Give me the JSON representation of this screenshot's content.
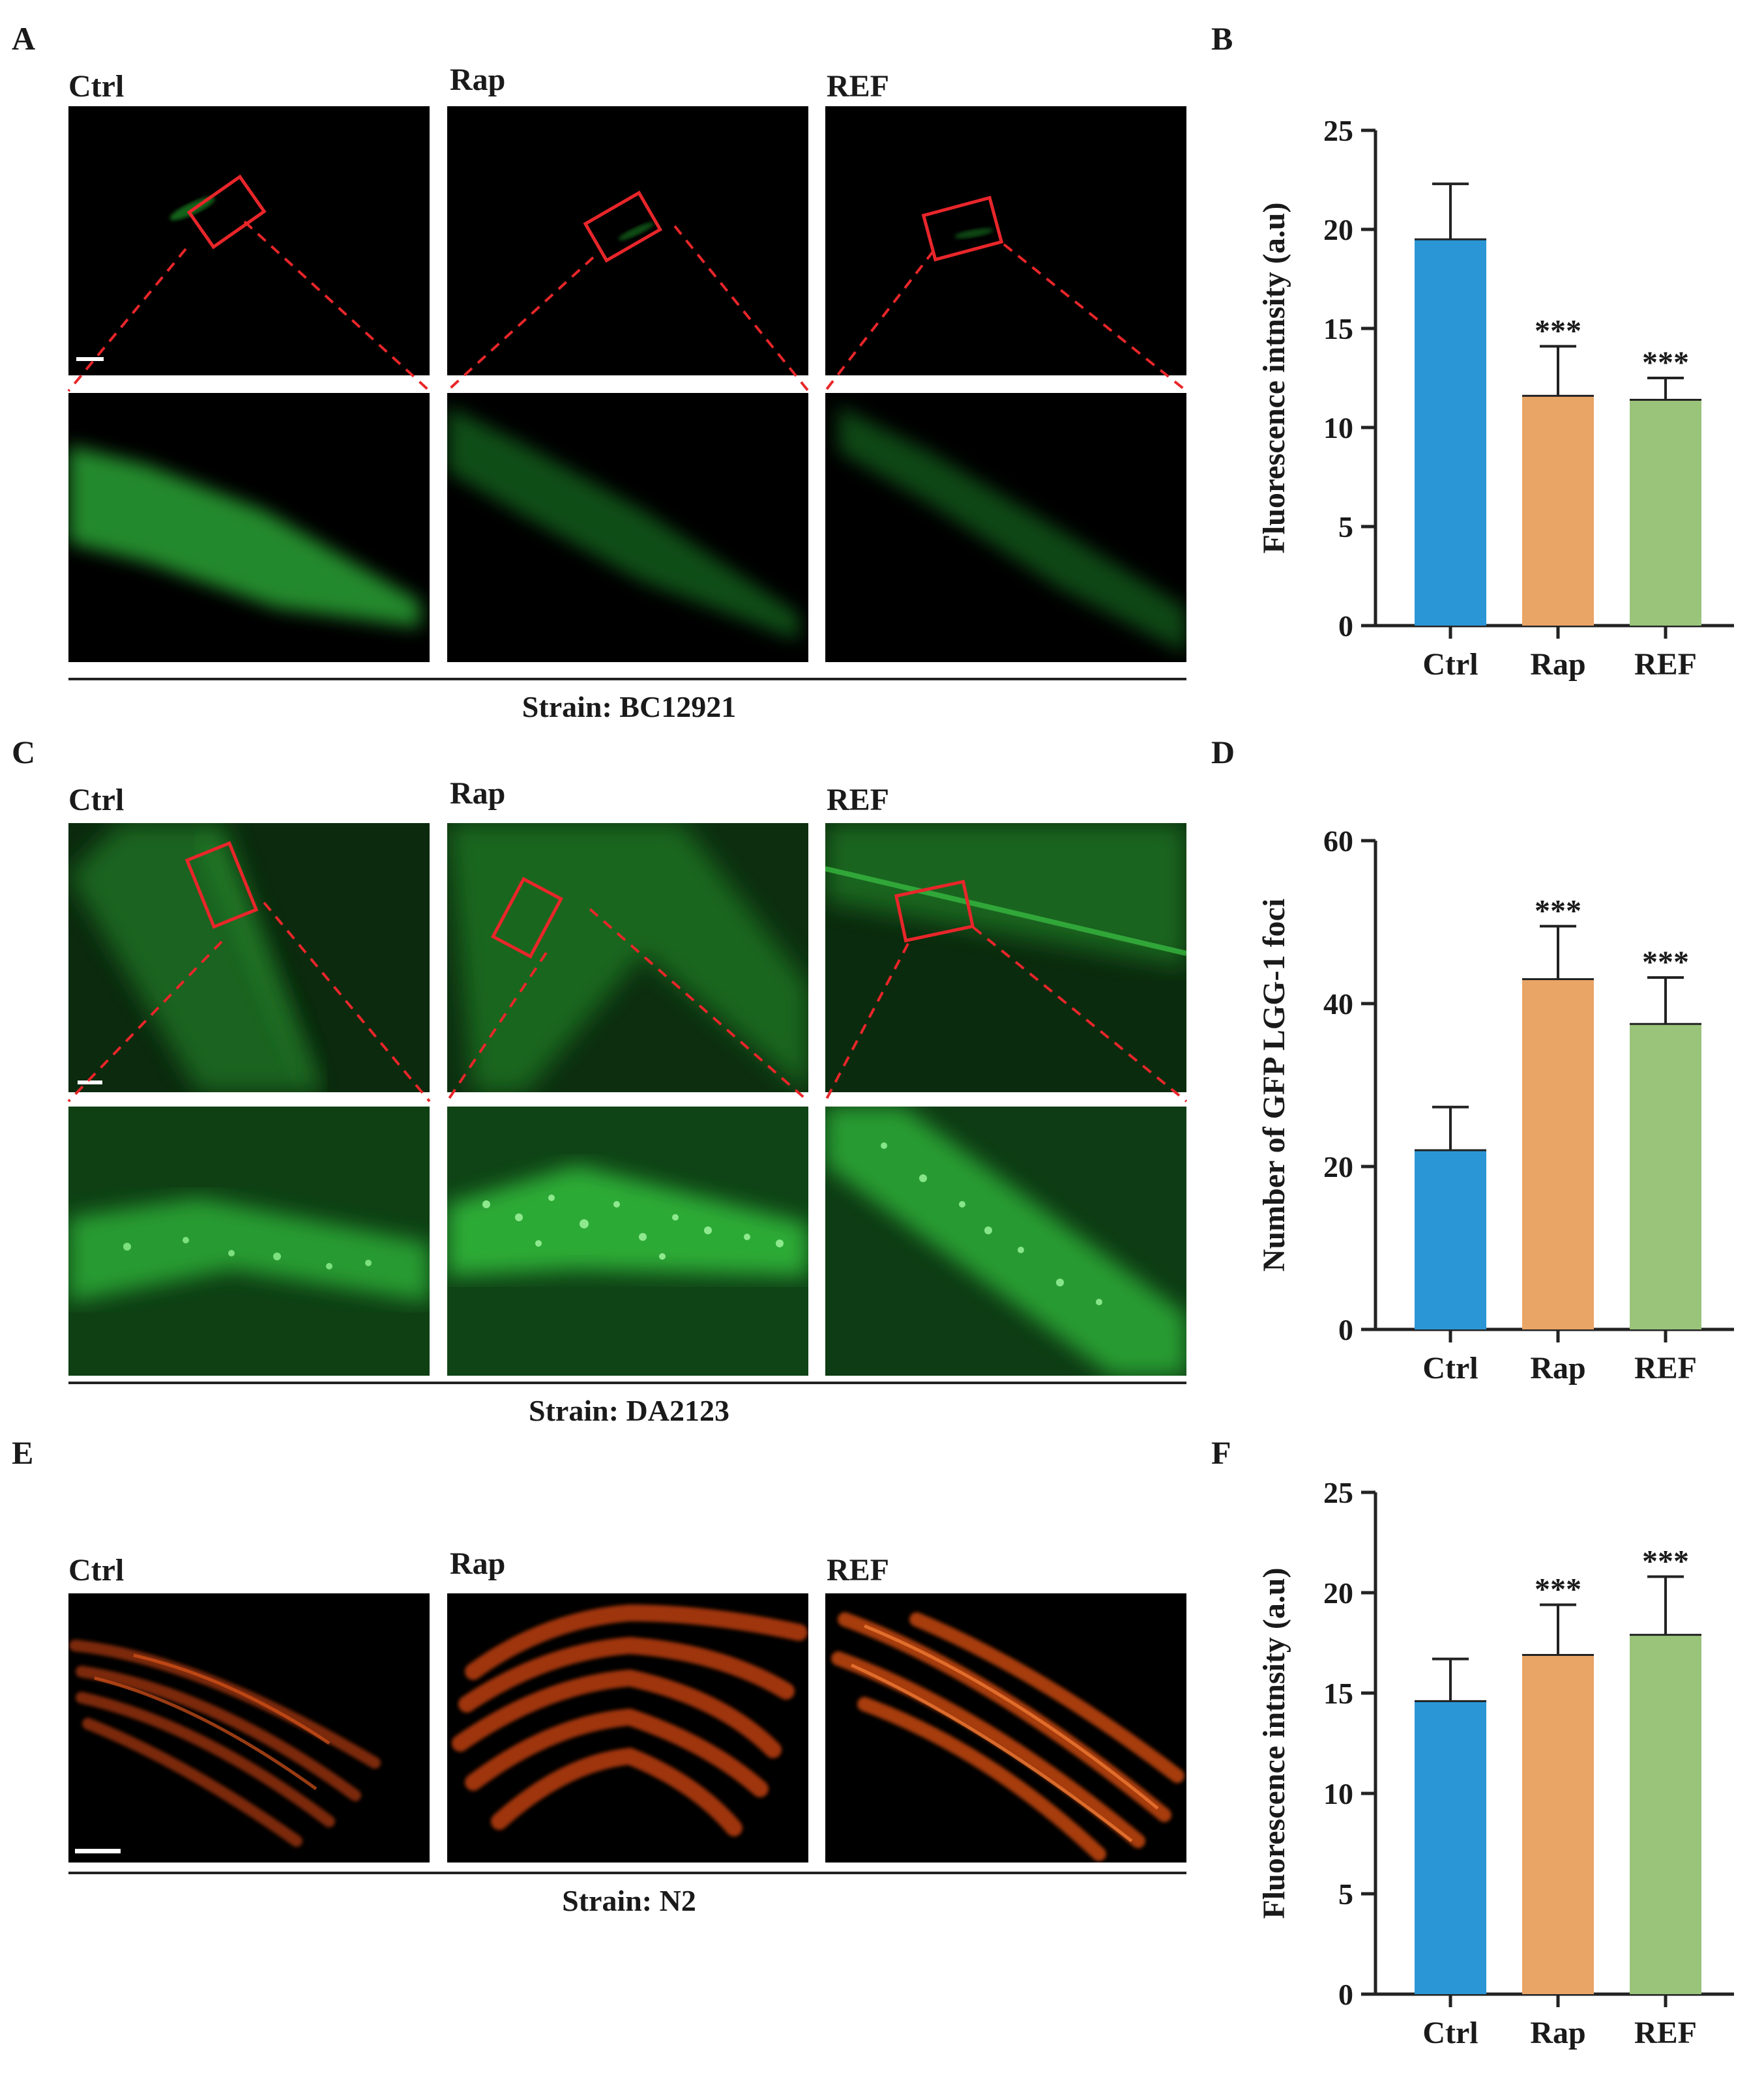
{
  "panels": {
    "A": {
      "letter": "A",
      "col_labels": [
        "Ctrl",
        "Rap",
        "REF"
      ],
      "strain": "Strain: BC12921"
    },
    "C": {
      "letter": "C",
      "col_labels": [
        "Ctrl",
        "Rap",
        "REF"
      ],
      "strain": "Strain: DA2123"
    },
    "E": {
      "letter": "E",
      "col_labels": [
        "Ctrl",
        "Rap",
        "REF"
      ],
      "strain": "Strain: N2"
    },
    "B": {
      "letter": "B"
    },
    "D": {
      "letter": "D"
    },
    "F": {
      "letter": "F"
    }
  },
  "colors": {
    "ctrl": "#2b96d6",
    "rap": "#e9a566",
    "ref": "#99c47a",
    "zoom_box": "#e8262a",
    "gfp": "#1fae2c",
    "rfp": "#d9541a"
  },
  "chart_data": [
    {
      "id": "B",
      "type": "bar",
      "categories": [
        "Ctrl",
        "Rap",
        "REF"
      ],
      "values": [
        19.5,
        11.6,
        11.4
      ],
      "errors": [
        2.8,
        2.5,
        1.1
      ],
      "significance": [
        "",
        "***",
        "***"
      ],
      "ylabel": "Fluorescence intnsity (a.u)",
      "ylim": [
        0,
        25
      ],
      "yticks": [
        0,
        5,
        10,
        15,
        20,
        25
      ]
    },
    {
      "id": "D",
      "type": "bar",
      "categories": [
        "Ctrl",
        "Rap",
        "REF"
      ],
      "values": [
        22,
        43,
        37.5
      ],
      "errors": [
        5.3,
        6.5,
        5.7
      ],
      "significance": [
        "",
        "***",
        "***"
      ],
      "ylabel": "Number of GFP LGG-1 foci",
      "ylim": [
        0,
        60
      ],
      "yticks": [
        0,
        20,
        40,
        60
      ]
    },
    {
      "id": "F",
      "type": "bar",
      "categories": [
        "Ctrl",
        "Rap",
        "REF"
      ],
      "values": [
        14.6,
        16.9,
        17.9
      ],
      "errors": [
        2.1,
        2.5,
        2.9
      ],
      "significance": [
        "",
        "***",
        "***"
      ],
      "ylabel": "Fluorescence intnsity (a.u)",
      "ylim": [
        0,
        25
      ],
      "yticks": [
        0,
        5,
        10,
        15,
        20,
        25
      ]
    }
  ]
}
